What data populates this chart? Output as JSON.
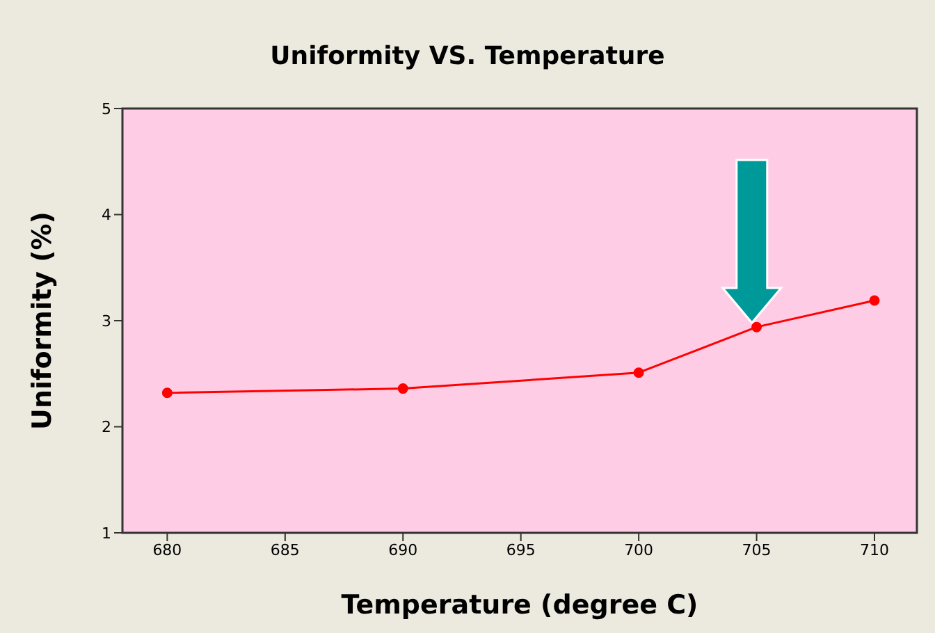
{
  "chart_data": {
    "type": "line",
    "title": "Uniformity VS. Temperature",
    "xlabel": "Temperature (degree C)",
    "ylabel": "Uniformity (%)",
    "x": [
      680,
      690,
      700,
      705,
      710
    ],
    "series": [
      {
        "color": "#ff0000",
        "values": [
          2.32,
          2.36,
          2.51,
          2.94,
          3.19
        ]
      }
    ],
    "xlim": [
      678.1,
      711.8
    ],
    "xticks": [
      680,
      685,
      690,
      695,
      700,
      705,
      710
    ],
    "ylim": [
      1,
      5
    ],
    "yticks": [
      1,
      2,
      3,
      4,
      5
    ],
    "marker": "circle",
    "line_style": "solid",
    "legend": false
  }
}
